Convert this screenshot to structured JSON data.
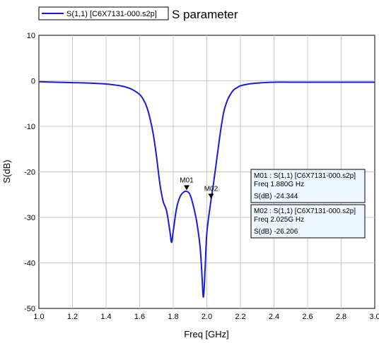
{
  "chart_data": {
    "type": "line",
    "title": "S parameter",
    "xlabel": "Freq [GHz]",
    "ylabel": "S(dB)",
    "xlim": [
      1.0,
      3.0
    ],
    "ylim": [
      -50,
      10
    ],
    "x_ticks": [
      "1.0",
      "1.2",
      "1.4",
      "1.6",
      "1.8",
      "2.0",
      "2.2",
      "2.4",
      "2.6",
      "2.8",
      "3.0"
    ],
    "y_ticks": [
      "10",
      "0",
      "-10",
      "-20",
      "-30",
      "-40",
      "-50"
    ],
    "grid": true,
    "legend": "top-left",
    "series": [
      {
        "name": "S(1,1) [C6X7131-000.s2p]",
        "color": "#1a1adc",
        "x": [
          1.0,
          1.1,
          1.2,
          1.3,
          1.4,
          1.45,
          1.5,
          1.55,
          1.6,
          1.62,
          1.64,
          1.66,
          1.68,
          1.7,
          1.72,
          1.74,
          1.76,
          1.78,
          1.79,
          1.8,
          1.82,
          1.84,
          1.86,
          1.88,
          1.9,
          1.92,
          1.94,
          1.96,
          1.97,
          1.98,
          1.99,
          2.0,
          2.02,
          2.025,
          2.04,
          2.06,
          2.08,
          2.1,
          2.12,
          2.14,
          2.16,
          2.18,
          2.2,
          2.25,
          2.3,
          2.4,
          2.5,
          2.6,
          2.7,
          2.8,
          2.9,
          3.0
        ],
        "y": [
          -0.2,
          -0.3,
          -0.4,
          -0.5,
          -0.7,
          -0.9,
          -1.2,
          -1.8,
          -3.0,
          -4.0,
          -5.5,
          -8.0,
          -11.5,
          -16.5,
          -22.5,
          -26.5,
          -28.5,
          -33.0,
          -35.5,
          -33.0,
          -28.0,
          -25.5,
          -24.5,
          -24.3,
          -25.0,
          -27.5,
          -31.0,
          -36.5,
          -42.0,
          -47.5,
          -41.0,
          -33.5,
          -27.5,
          -26.2,
          -22.5,
          -17.0,
          -11.5,
          -7.0,
          -4.5,
          -3.0,
          -2.0,
          -1.5,
          -1.1,
          -0.7,
          -0.5,
          -0.3,
          -0.3,
          -0.3,
          -0.3,
          -0.3,
          -0.3,
          -0.3
        ]
      }
    ],
    "markers": [
      {
        "label": "M01",
        "x": 1.88,
        "y": -24.344
      },
      {
        "label": "M02",
        "x": 2.025,
        "y": -26.206
      }
    ],
    "annotations": [
      {
        "line1": "M01 : S(1,1) [C6X7131-000.s2p]",
        "line2": "Freq   1.880G   Hz",
        "line3": "S(dB) -24.344"
      },
      {
        "line1": "M02 : S(1,1) [C6X7131-000.s2p]",
        "line2": "Freq   2.025G   Hz",
        "line3": "S(dB) -26.206"
      }
    ]
  }
}
